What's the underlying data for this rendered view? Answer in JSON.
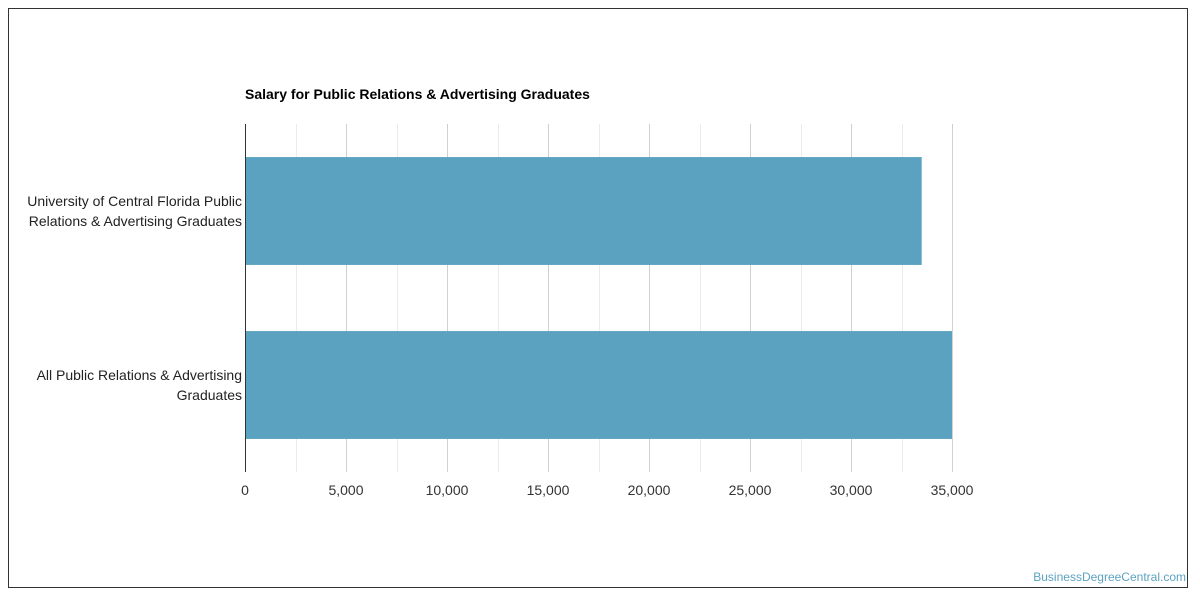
{
  "chart_data": {
    "type": "bar",
    "orientation": "horizontal",
    "title": "Salary for Public Relations & Advertising Graduates",
    "categories": [
      [
        "University of Central Florida Public",
        "Relations & Advertising Graduates"
      ],
      [
        "All Public Relations & Advertising",
        "Graduates"
      ]
    ],
    "values": [
      33500,
      35000
    ],
    "xlim": [
      0,
      35000
    ],
    "xticks": [
      0,
      5000,
      10000,
      15000,
      20000,
      25000,
      30000,
      35000
    ],
    "xtick_labels": [
      "0",
      "5,000",
      "10,000",
      "15,000",
      "20,000",
      "25,000",
      "30,000",
      "35,000"
    ],
    "grid": true,
    "legend": "none",
    "bar_color": "#5ba2c1"
  },
  "watermark": "BusinessDegreeCentral.com"
}
